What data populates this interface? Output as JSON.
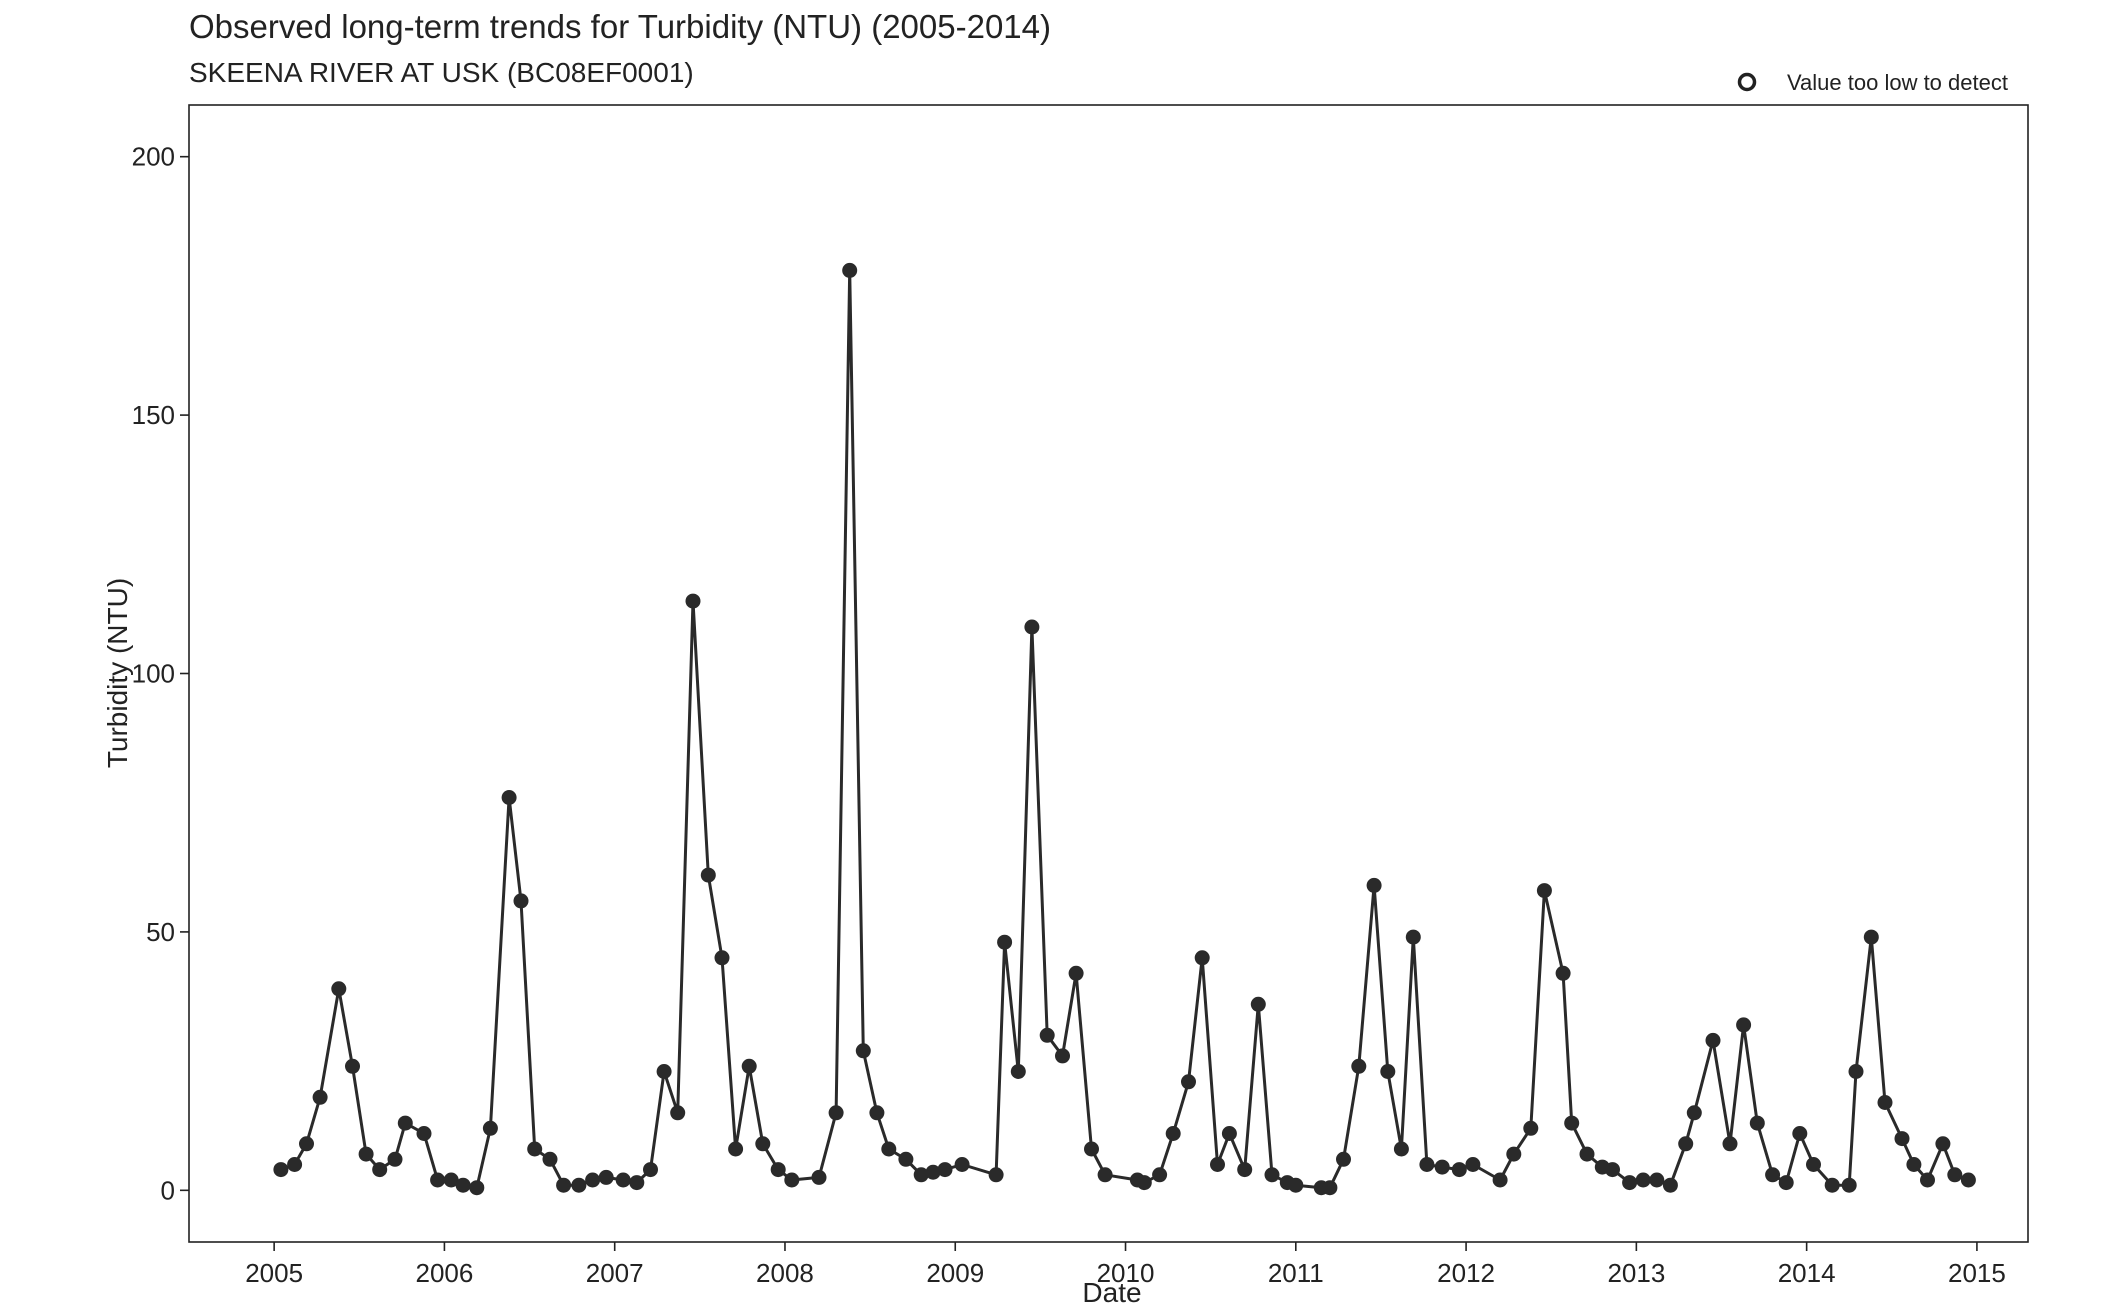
{
  "chart_data": {
    "type": "line",
    "title": "Observed long-term trends for Turbidity (NTU) (2005-2014)",
    "subtitle": "SKEENA RIVER AT USK (BC08EF0001)",
    "xlabel": "Date",
    "ylabel": "Turbidity (NTU)",
    "xlim": [
      2004.5,
      2015.3
    ],
    "ylim": [
      -10,
      210
    ],
    "x_ticks": [
      2005,
      2006,
      2007,
      2008,
      2009,
      2010,
      2011,
      2012,
      2013,
      2014,
      2015
    ],
    "x_tick_labels": [
      "2005",
      "2006",
      "2007",
      "2008",
      "2009",
      "2010",
      "2011",
      "2012",
      "2013",
      "2014",
      "2015"
    ],
    "y_ticks": [
      0,
      50,
      100,
      150,
      200
    ],
    "y_tick_labels": [
      "0",
      "50",
      "100",
      "150",
      "200"
    ],
    "grid": false,
    "legend": {
      "position": "top-right",
      "entries": [
        {
          "label": "Value too low to detect",
          "marker": "open-circle"
        }
      ]
    },
    "colors": {
      "series": "#2a2a2a",
      "axis": "#222222",
      "background": "#ffffff"
    },
    "series": [
      {
        "x": [
          2005.04,
          2005.12,
          2005.19,
          2005.27,
          2005.38,
          2005.46,
          2005.54,
          2005.62,
          2005.71,
          2005.77,
          2005.88,
          2005.96,
          2006.04,
          2006.11,
          2006.19,
          2006.27,
          2006.38,
          2006.45,
          2006.53,
          2006.62,
          2006.7,
          2006.79,
          2006.87,
          2006.95,
          2007.05,
          2007.13,
          2007.21,
          2007.29,
          2007.37,
          2007.46,
          2007.55,
          2007.63,
          2007.71,
          2007.79,
          2007.87,
          2007.96,
          2008.04,
          2008.2,
          2008.3,
          2008.38,
          2008.46,
          2008.54,
          2008.61,
          2008.71,
          2008.8,
          2008.87,
          2008.94,
          2009.04,
          2009.24,
          2009.29,
          2009.37,
          2009.45,
          2009.54,
          2009.63,
          2009.71,
          2009.8,
          2009.88,
          2010.07,
          2010.11,
          2010.2,
          2010.28,
          2010.37,
          2010.45,
          2010.54,
          2010.61,
          2010.7,
          2010.78,
          2010.86,
          2010.95,
          2011.0,
          2011.15,
          2011.2,
          2011.28,
          2011.37,
          2011.46,
          2011.54,
          2011.62,
          2011.69,
          2011.77,
          2011.86,
          2011.96,
          2012.04,
          2012.2,
          2012.28,
          2012.38,
          2012.46,
          2012.57,
          2012.62,
          2012.71,
          2012.8,
          2012.86,
          2012.96,
          2013.04,
          2013.12,
          2013.2,
          2013.29,
          2013.34,
          2013.45,
          2013.55,
          2013.63,
          2013.71,
          2013.8,
          2013.88,
          2013.96,
          2014.04,
          2014.15,
          2014.25,
          2014.29,
          2014.38,
          2014.46,
          2014.56,
          2014.63,
          2014.71,
          2014.8,
          2014.87,
          2014.95
        ],
        "y": [
          4,
          5,
          9,
          18,
          39,
          24,
          7,
          4,
          6,
          13,
          11,
          2,
          2,
          1,
          0.5,
          12,
          76,
          56,
          8,
          6,
          1,
          1,
          2,
          2.5,
          2,
          1.5,
          4,
          23,
          15,
          114,
          61,
          45,
          8,
          24,
          9,
          4,
          2,
          2.5,
          15,
          178,
          27,
          15,
          8,
          6,
          3,
          3.5,
          4,
          5,
          3,
          48,
          23,
          109,
          30,
          26,
          42,
          8,
          3,
          2,
          1.5,
          3,
          11,
          21,
          45,
          5,
          11,
          4,
          36,
          3,
          1.5,
          1,
          0.5,
          0.5,
          6,
          24,
          59,
          23,
          8,
          49,
          5,
          4.5,
          4,
          5,
          2,
          7,
          12,
          58,
          42,
          13,
          7,
          4.5,
          4,
          1.5,
          2,
          2,
          1,
          9,
          15,
          29,
          9,
          32,
          13,
          3,
          1.5,
          11,
          5,
          1,
          1,
          23,
          49,
          17,
          10,
          5,
          2,
          9,
          3,
          2
        ]
      }
    ]
  }
}
